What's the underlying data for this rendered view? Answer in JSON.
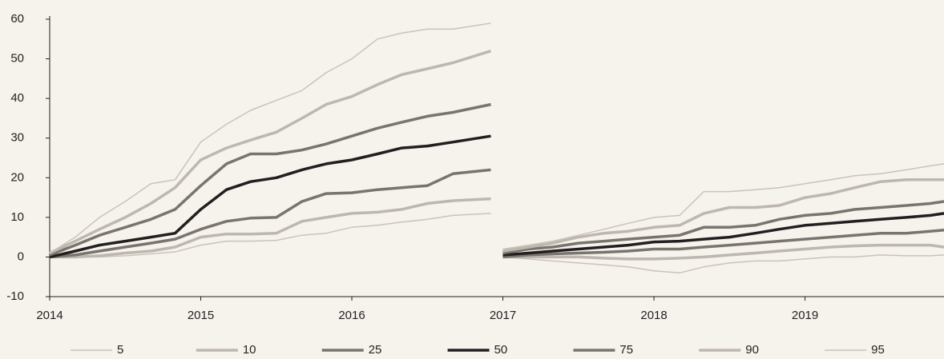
{
  "chart_data": {
    "type": "line",
    "x": [
      2014,
      2014.17,
      2014.33,
      2014.5,
      2014.67,
      2014.83,
      2015,
      2015.17,
      2015.33,
      2015.5,
      2015.67,
      2015.83,
      2016,
      2016.17,
      2016.33,
      2016.5,
      2016.67,
      2016.92,
      2016.95,
      2017,
      2017.17,
      2017.33,
      2017.5,
      2017.67,
      2017.83,
      2018,
      2018.17,
      2018.33,
      2018.5,
      2018.67,
      2018.83,
      2019,
      2019.17,
      2019.33,
      2019.5,
      2019.67,
      2019.83,
      2019.92
    ],
    "series": [
      {
        "name": "5",
        "color": "#c9c3bb",
        "values": [
          0,
          0,
          0,
          0.3,
          0.8,
          1.3,
          3,
          4,
          4,
          4.2,
          5.5,
          6,
          7.5,
          8,
          8.8,
          9.5,
          10.5,
          11,
          null,
          0,
          -0.5,
          -1,
          -1.5,
          -2,
          -2.5,
          -3.5,
          -4,
          -2.5,
          -1.5,
          -1,
          -1,
          -0.5,
          0,
          0,
          0.5,
          0.3,
          0.3,
          0.5
        ]
      },
      {
        "name": "10",
        "color": "#bdb7af",
        "values": [
          0,
          0,
          0.3,
          1,
          1.5,
          2.5,
          5,
          5.8,
          5.8,
          6,
          9,
          10,
          11,
          11.3,
          12,
          13.5,
          14.2,
          14.7,
          null,
          0,
          0,
          0,
          0,
          -0.3,
          -0.5,
          -0.5,
          -0.3,
          0,
          0.5,
          1,
          1.5,
          2,
          2.5,
          2.8,
          3,
          3,
          3,
          2.5
        ]
      },
      {
        "name": "25",
        "color": "#7a746e",
        "values": [
          0,
          0.5,
          1.5,
          2.5,
          3.5,
          4.5,
          7,
          9,
          9.8,
          10,
          14,
          16,
          16.2,
          17,
          17.5,
          18,
          21,
          22,
          null,
          0,
          0.5,
          0.8,
          1,
          1.2,
          1.5,
          2,
          2,
          2.5,
          3,
          3.5,
          4,
          4.5,
          5,
          5.5,
          6,
          6,
          6.5,
          6.8
        ]
      },
      {
        "name": "50",
        "color": "#231f20",
        "values": [
          0,
          1.5,
          3,
          4,
          5,
          6,
          12,
          17,
          19,
          20,
          22,
          23.5,
          24.5,
          26,
          27.5,
          28,
          29,
          30.5,
          null,
          0.5,
          1,
          1.5,
          2,
          2.5,
          3,
          3.8,
          4,
          4.5,
          5,
          6,
          7,
          8,
          8.5,
          9,
          9.5,
          10,
          10.5,
          11
        ]
      },
      {
        "name": "75",
        "color": "#7a746e",
        "values": [
          0.5,
          3,
          5.5,
          7.5,
          9.5,
          12,
          18,
          23.5,
          26,
          26,
          27,
          28.5,
          30.5,
          32.5,
          34,
          35.5,
          36.5,
          38.5,
          null,
          1,
          2,
          2.5,
          3.5,
          4,
          4.5,
          5,
          5.5,
          7.5,
          7.5,
          8,
          9.5,
          10.5,
          11,
          12,
          12.5,
          13,
          13.5,
          14
        ]
      },
      {
        "name": "90",
        "color": "#bdb7af",
        "values": [
          1,
          4,
          7,
          10,
          13.5,
          17.5,
          24.5,
          27.5,
          29.5,
          31.5,
          35,
          38.5,
          40.5,
          43.5,
          46,
          47.5,
          49,
          52,
          null,
          1.5,
          2.5,
          3.5,
          5,
          6,
          6.5,
          7.5,
          8,
          11,
          12.5,
          12.5,
          13,
          15,
          16,
          17.5,
          19,
          19.5,
          19.5,
          19.5
        ]
      },
      {
        "name": "95",
        "color": "#c9c3bb",
        "values": [
          1,
          5,
          10,
          14,
          18.5,
          19.5,
          29,
          33.5,
          37,
          39.5,
          42,
          46.5,
          50,
          55,
          56.5,
          57.5,
          57.5,
          59,
          null,
          2,
          3,
          4,
          5.5,
          7,
          8.5,
          10,
          10.5,
          16.5,
          16.5,
          17,
          17.5,
          18.5,
          19.5,
          20.5,
          21,
          22,
          23,
          23.5
        ]
      }
    ],
    "xlim": [
      2014,
      2019.92
    ],
    "xticks": [
      2014,
      2015,
      2016,
      2017,
      2018,
      2019
    ],
    "ylim": [
      -10,
      60
    ],
    "yticks": [
      -10,
      0,
      10,
      20,
      30,
      40,
      50,
      60
    ],
    "legend": "bottom"
  }
}
